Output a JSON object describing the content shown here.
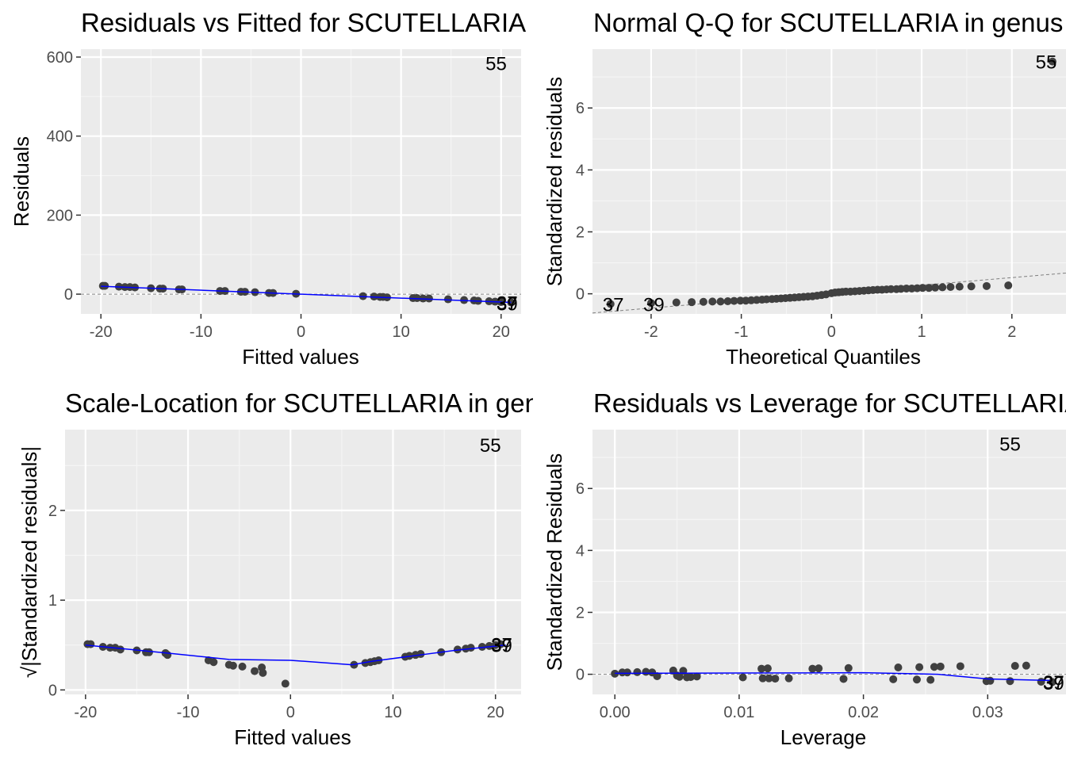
{
  "colors": {
    "panel_bg": "#ebebeb",
    "grid_major": "#ffffff",
    "grid_minor": "#f5f5f5",
    "point": "#404040",
    "smooth": "#0000ff",
    "ref_line": "#7f7f7f"
  },
  "chart_data": [
    {
      "type": "scatter",
      "title": "Residuals vs Fitted for SCUTELLARIA in genus model",
      "xlabel": "Fitted values",
      "ylabel": "Residuals",
      "xlim": [
        -22,
        22
      ],
      "ylim": [
        -50,
        620
      ],
      "xticks": [
        -20,
        -10,
        0,
        10,
        20
      ],
      "xtick_labels": [
        "-20",
        "-10",
        "0",
        "10",
        "20"
      ],
      "yticks": [
        0,
        200,
        400,
        600
      ],
      "ytick_labels": [
        "0",
        "200",
        "400",
        "600"
      ],
      "ref_y": 0,
      "x": [
        -19.8,
        -19.6,
        -18.2,
        -17.6,
        -17.1,
        -16.6,
        -15.0,
        -14.1,
        -13.8,
        -12.2,
        -11.9,
        -8.1,
        -7.6,
        -6.0,
        -5.6,
        -4.6,
        -3.2,
        -2.8,
        -0.5,
        6.2,
        7.3,
        7.9,
        8.2,
        8.6,
        11.2,
        11.6,
        12.2,
        12.8,
        14.7,
        16.3,
        17.3,
        17.7,
        18.8,
        19.4,
        20.0,
        21.0
      ],
      "y": [
        21,
        21,
        19,
        18,
        18,
        17,
        15,
        14,
        14,
        12,
        12,
        8,
        8,
        6,
        6,
        5,
        3,
        3,
        1,
        -5,
        -6,
        -7,
        -7,
        -8,
        -10,
        -10,
        -11,
        -11,
        -13,
        -15,
        -16,
        -17,
        -18,
        -19,
        -20,
        -21
      ],
      "smooth": {
        "x": [
          -20,
          0,
          20,
          21
        ],
        "y": [
          20,
          0,
          -20,
          -21
        ]
      },
      "labels": [
        {
          "text": "55",
          "x": 19.5,
          "y": 585
        },
        {
          "text": "37",
          "x": 20.6,
          "y": -21
        },
        {
          "text": "39",
          "x": 20.6,
          "y": -23
        }
      ],
      "grid": true
    },
    {
      "type": "scatter",
      "title": "Normal Q-Q for SCUTELLARIA in genus model",
      "xlabel": "Theoretical Quantiles",
      "ylabel": "Standardized residuals",
      "xlim": [
        -2.65,
        2.6
      ],
      "ylim": [
        -0.65,
        7.9
      ],
      "xticks": [
        -2,
        -1,
        0,
        1,
        2
      ],
      "xtick_labels": [
        "-2",
        "-1",
        "0",
        "1",
        "2"
      ],
      "yticks": [
        0,
        2,
        4,
        6
      ],
      "ytick_labels": [
        "0",
        "2",
        "4",
        "6"
      ],
      "ref_line": {
        "x": [
          -2.65,
          2.6
        ],
        "y": [
          -0.62,
          0.67
        ]
      },
      "x": [
        -2.45,
        -2.0,
        -1.72,
        -1.55,
        -1.42,
        -1.32,
        -1.23,
        -1.15,
        -1.08,
        -1.01,
        -0.95,
        -0.89,
        -0.83,
        -0.77,
        -0.72,
        -0.66,
        -0.61,
        -0.56,
        -0.51,
        -0.46,
        -0.41,
        -0.36,
        -0.31,
        -0.26,
        -0.21,
        -0.16,
        -0.11,
        -0.06,
        0.0,
        0.04,
        0.08,
        0.12,
        0.16,
        0.21,
        0.26,
        0.31,
        0.36,
        0.41,
        0.46,
        0.51,
        0.56,
        0.61,
        0.66,
        0.72,
        0.77,
        0.83,
        0.89,
        0.95,
        1.01,
        1.08,
        1.15,
        1.23,
        1.32,
        1.42,
        1.55,
        1.72,
        1.96,
        2.45
      ],
      "y": [
        -0.33,
        -0.3,
        -0.28,
        -0.27,
        -0.26,
        -0.25,
        -0.25,
        -0.24,
        -0.23,
        -0.22,
        -0.22,
        -0.21,
        -0.2,
        -0.19,
        -0.18,
        -0.17,
        -0.16,
        -0.15,
        -0.14,
        -0.13,
        -0.12,
        -0.11,
        -0.1,
        -0.09,
        -0.08,
        -0.06,
        -0.04,
        -0.02,
        0.02,
        0.04,
        0.05,
        0.06,
        0.07,
        0.07,
        0.08,
        0.09,
        0.1,
        0.11,
        0.12,
        0.13,
        0.13,
        0.14,
        0.15,
        0.15,
        0.16,
        0.17,
        0.17,
        0.18,
        0.19,
        0.19,
        0.2,
        0.21,
        0.22,
        0.23,
        0.24,
        0.25,
        0.27,
        7.5
      ],
      "labels": [
        {
          "text": "55",
          "x": 2.38,
          "y": 7.5
        },
        {
          "text": "37",
          "x": -2.42,
          "y": -0.33
        },
        {
          "text": "39",
          "x": -1.97,
          "y": -0.33
        }
      ],
      "grid": true
    },
    {
      "type": "scatter",
      "title": "Scale-Location for SCUTELLARIA in genus model",
      "xlabel": "Fitted values",
      "ylabel": "√|Standardized residuals|",
      "xlim": [
        -22,
        22.5
      ],
      "ylim": [
        -0.05,
        2.9
      ],
      "xticks": [
        -20,
        -10,
        0,
        10,
        20
      ],
      "xtick_labels": [
        "-20",
        "-10",
        "0",
        "10",
        "20"
      ],
      "yticks": [
        0,
        1,
        2
      ],
      "ytick_labels": [
        "0",
        "1",
        "2"
      ],
      "x": [
        -19.8,
        -19.5,
        -18.3,
        -17.6,
        -17.1,
        -16.6,
        -15.0,
        -14.1,
        -13.8,
        -12.2,
        -12.0,
        -8.0,
        -7.5,
        -6.0,
        -5.6,
        -4.7,
        -3.5,
        -2.8,
        -2.7,
        -0.5,
        6.2,
        7.3,
        7.8,
        8.2,
        8.6,
        11.2,
        11.6,
        12.2,
        12.7,
        14.7,
        16.3,
        17.1,
        17.6,
        18.7,
        19.4,
        20.0,
        20.5
      ],
      "y": [
        0.51,
        0.51,
        0.48,
        0.47,
        0.47,
        0.45,
        0.44,
        0.42,
        0.42,
        0.41,
        0.39,
        0.33,
        0.31,
        0.28,
        0.27,
        0.26,
        0.21,
        0.25,
        0.19,
        0.07,
        0.28,
        0.3,
        0.31,
        0.32,
        0.33,
        0.37,
        0.38,
        0.39,
        0.4,
        0.42,
        0.45,
        0.46,
        0.47,
        0.48,
        0.49,
        0.5,
        0.51
      ],
      "smooth": {
        "x": [
          -20,
          -12,
          -6,
          0,
          6,
          8,
          12,
          16,
          21
        ],
        "y": [
          0.5,
          0.41,
          0.34,
          0.33,
          0.28,
          0.32,
          0.38,
          0.44,
          0.5
        ]
      },
      "labels": [
        {
          "text": "55",
          "x": 19.5,
          "y": 2.73
        },
        {
          "text": "37",
          "x": 20.6,
          "y": 0.51
        },
        {
          "text": "39",
          "x": 20.6,
          "y": 0.5
        }
      ],
      "grid": true
    },
    {
      "type": "scatter",
      "title": "Residuals vs Leverage for SCUTELLARIA in genus model",
      "xlabel": "Leverage",
      "ylabel": "Standardized Residuals",
      "xlim": [
        -0.0018,
        0.0363
      ],
      "ylim": [
        -0.65,
        7.9
      ],
      "xticks": [
        0.0,
        0.01,
        0.02,
        0.03
      ],
      "xtick_labels": [
        "0.00",
        "0.01",
        "0.02",
        "0.03"
      ],
      "yticks": [
        0,
        2,
        4,
        6
      ],
      "ytick_labels": [
        "0",
        "2",
        "4",
        "6"
      ],
      "ref_y": 0,
      "x": [
        0.0,
        0.0006,
        0.001,
        0.0018,
        0.0025,
        0.003,
        0.0034,
        0.0047,
        0.005,
        0.0052,
        0.0055,
        0.0058,
        0.0061,
        0.0066,
        0.0103,
        0.0118,
        0.0119,
        0.0123,
        0.0124,
        0.0129,
        0.014,
        0.0159,
        0.0164,
        0.0184,
        0.0188,
        0.0224,
        0.0228,
        0.0243,
        0.0245,
        0.0254,
        0.0257,
        0.0262,
        0.0278,
        0.0299,
        0.0302,
        0.0318,
        0.0322,
        0.0331,
        0.0343,
        0.0352
      ],
      "y": [
        0.02,
        0.06,
        0.06,
        0.07,
        0.08,
        0.06,
        -0.06,
        0.12,
        -0.04,
        -0.08,
        0.11,
        -0.1,
        -0.09,
        -0.07,
        -0.1,
        0.18,
        -0.13,
        0.19,
        -0.13,
        -0.14,
        -0.13,
        0.18,
        0.19,
        -0.15,
        0.2,
        -0.16,
        0.22,
        -0.17,
        0.23,
        -0.18,
        0.24,
        0.25,
        0.26,
        -0.22,
        -0.21,
        -0.22,
        0.27,
        0.28,
        -0.24,
        -0.25
      ],
      "smooth": {
        "x": [
          0.0,
          0.01,
          0.02,
          0.026,
          0.03,
          0.035
        ],
        "y": [
          0.03,
          0.04,
          0.05,
          0.0,
          -0.15,
          -0.2
        ]
      },
      "labels": [
        {
          "text": "55",
          "x": 0.0318,
          "y": 7.45
        },
        {
          "text": "37",
          "x": 0.0353,
          "y": -0.24
        },
        {
          "text": "39",
          "x": 0.0353,
          "y": -0.26
        }
      ],
      "grid": true
    }
  ]
}
